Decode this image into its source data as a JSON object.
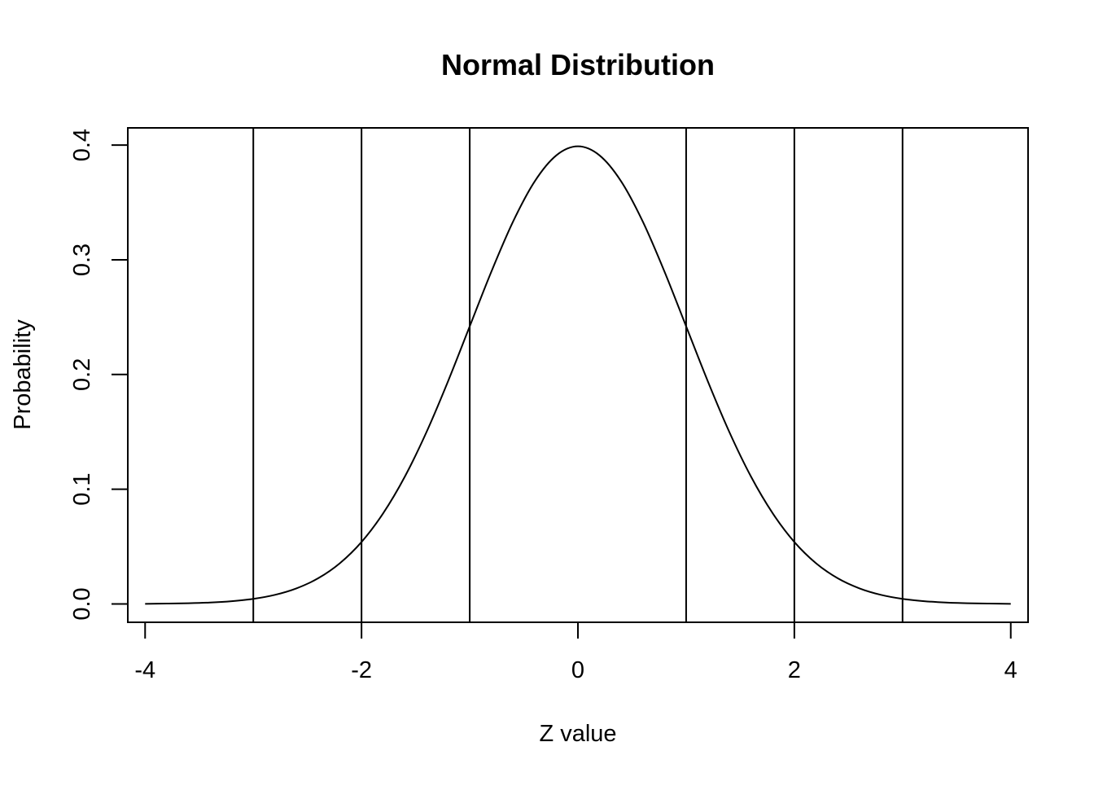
{
  "chart_data": {
    "type": "line",
    "title": "Normal Distribution",
    "xlabel": "Z value",
    "ylabel": "Probability",
    "xlim": [
      -4.16,
      4.16
    ],
    "ylim": [
      -0.016,
      0.415
    ],
    "x_ticks": [
      -4,
      -2,
      0,
      2,
      4
    ],
    "x_tick_labels": [
      "-4",
      "-2",
      "0",
      "2",
      "4"
    ],
    "y_ticks": [
      0.0,
      0.1,
      0.2,
      0.3,
      0.4
    ],
    "y_tick_labels": [
      "0.0",
      "0.1",
      "0.2",
      "0.3",
      "0.4"
    ],
    "grid": false,
    "series": [
      {
        "x": [
          -4.0,
          -3.8,
          -3.6,
          -3.4,
          -3.2,
          -3.0,
          -2.8,
          -2.6,
          -2.4,
          -2.2,
          -2.0,
          -1.8,
          -1.6,
          -1.4,
          -1.2,
          -1.0,
          -0.8,
          -0.6,
          -0.4,
          -0.2,
          0.0,
          0.2,
          0.4,
          0.6,
          0.8,
          1.0,
          1.2,
          1.4,
          1.6,
          1.8,
          2.0,
          2.2,
          2.4,
          2.6,
          2.8,
          3.0,
          3.2,
          3.4,
          3.6,
          3.8,
          4.0
        ],
        "y": [
          0.0001,
          0.0003,
          0.0006,
          0.0012,
          0.0024,
          0.0044,
          0.0079,
          0.0136,
          0.0224,
          0.0355,
          0.054,
          0.079,
          0.1109,
          0.1497,
          0.1942,
          0.242,
          0.2897,
          0.3332,
          0.3683,
          0.391,
          0.3989,
          0.391,
          0.3683,
          0.3332,
          0.2897,
          0.242,
          0.1942,
          0.1497,
          0.1109,
          0.079,
          0.054,
          0.0355,
          0.0224,
          0.0136,
          0.0079,
          0.0044,
          0.0024,
          0.0012,
          0.0006,
          0.0003,
          0.0001
        ],
        "color": "#000000"
      }
    ],
    "vertical_lines": [
      -3,
      -2,
      -1,
      1,
      2,
      3
    ]
  }
}
